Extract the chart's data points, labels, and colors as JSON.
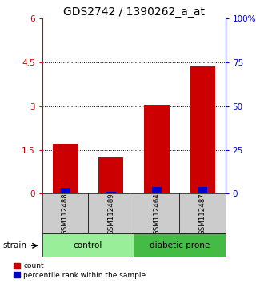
{
  "title": "GDS2742 / 1390262_a_at",
  "samples": [
    "GSM112488",
    "GSM112489",
    "GSM112464",
    "GSM112487"
  ],
  "group_labels": [
    "control",
    "diabetic prone"
  ],
  "red_values": [
    1.7,
    1.25,
    3.05,
    4.35
  ],
  "blue_values_pct": [
    3.5,
    1.3,
    3.7,
    3.8
  ],
  "ylim_left": [
    0,
    6
  ],
  "ylim_right": [
    0,
    100
  ],
  "yticks_left": [
    0,
    1.5,
    3.0,
    4.5,
    6
  ],
  "ytick_labels_left": [
    "0",
    "1.5",
    "3",
    "4.5",
    "6"
  ],
  "yticks_right": [
    0,
    25,
    50,
    75,
    100
  ],
  "ytick_labels_right": [
    "0",
    "25",
    "50",
    "75",
    "100%"
  ],
  "grid_values": [
    1.5,
    3.0,
    4.5
  ],
  "bar_width": 0.55,
  "blue_bar_width": 0.22,
  "red_color": "#cc0000",
  "blue_color": "#0000cc",
  "control_color": "#99ee99",
  "diabetic_color": "#44bb44",
  "sample_box_color": "#cccccc",
  "strain_label": "strain",
  "legend_count": "count",
  "legend_percentile": "percentile rank within the sample",
  "title_fontsize": 10,
  "tick_fontsize": 7.5,
  "legend_fontsize": 6.5
}
